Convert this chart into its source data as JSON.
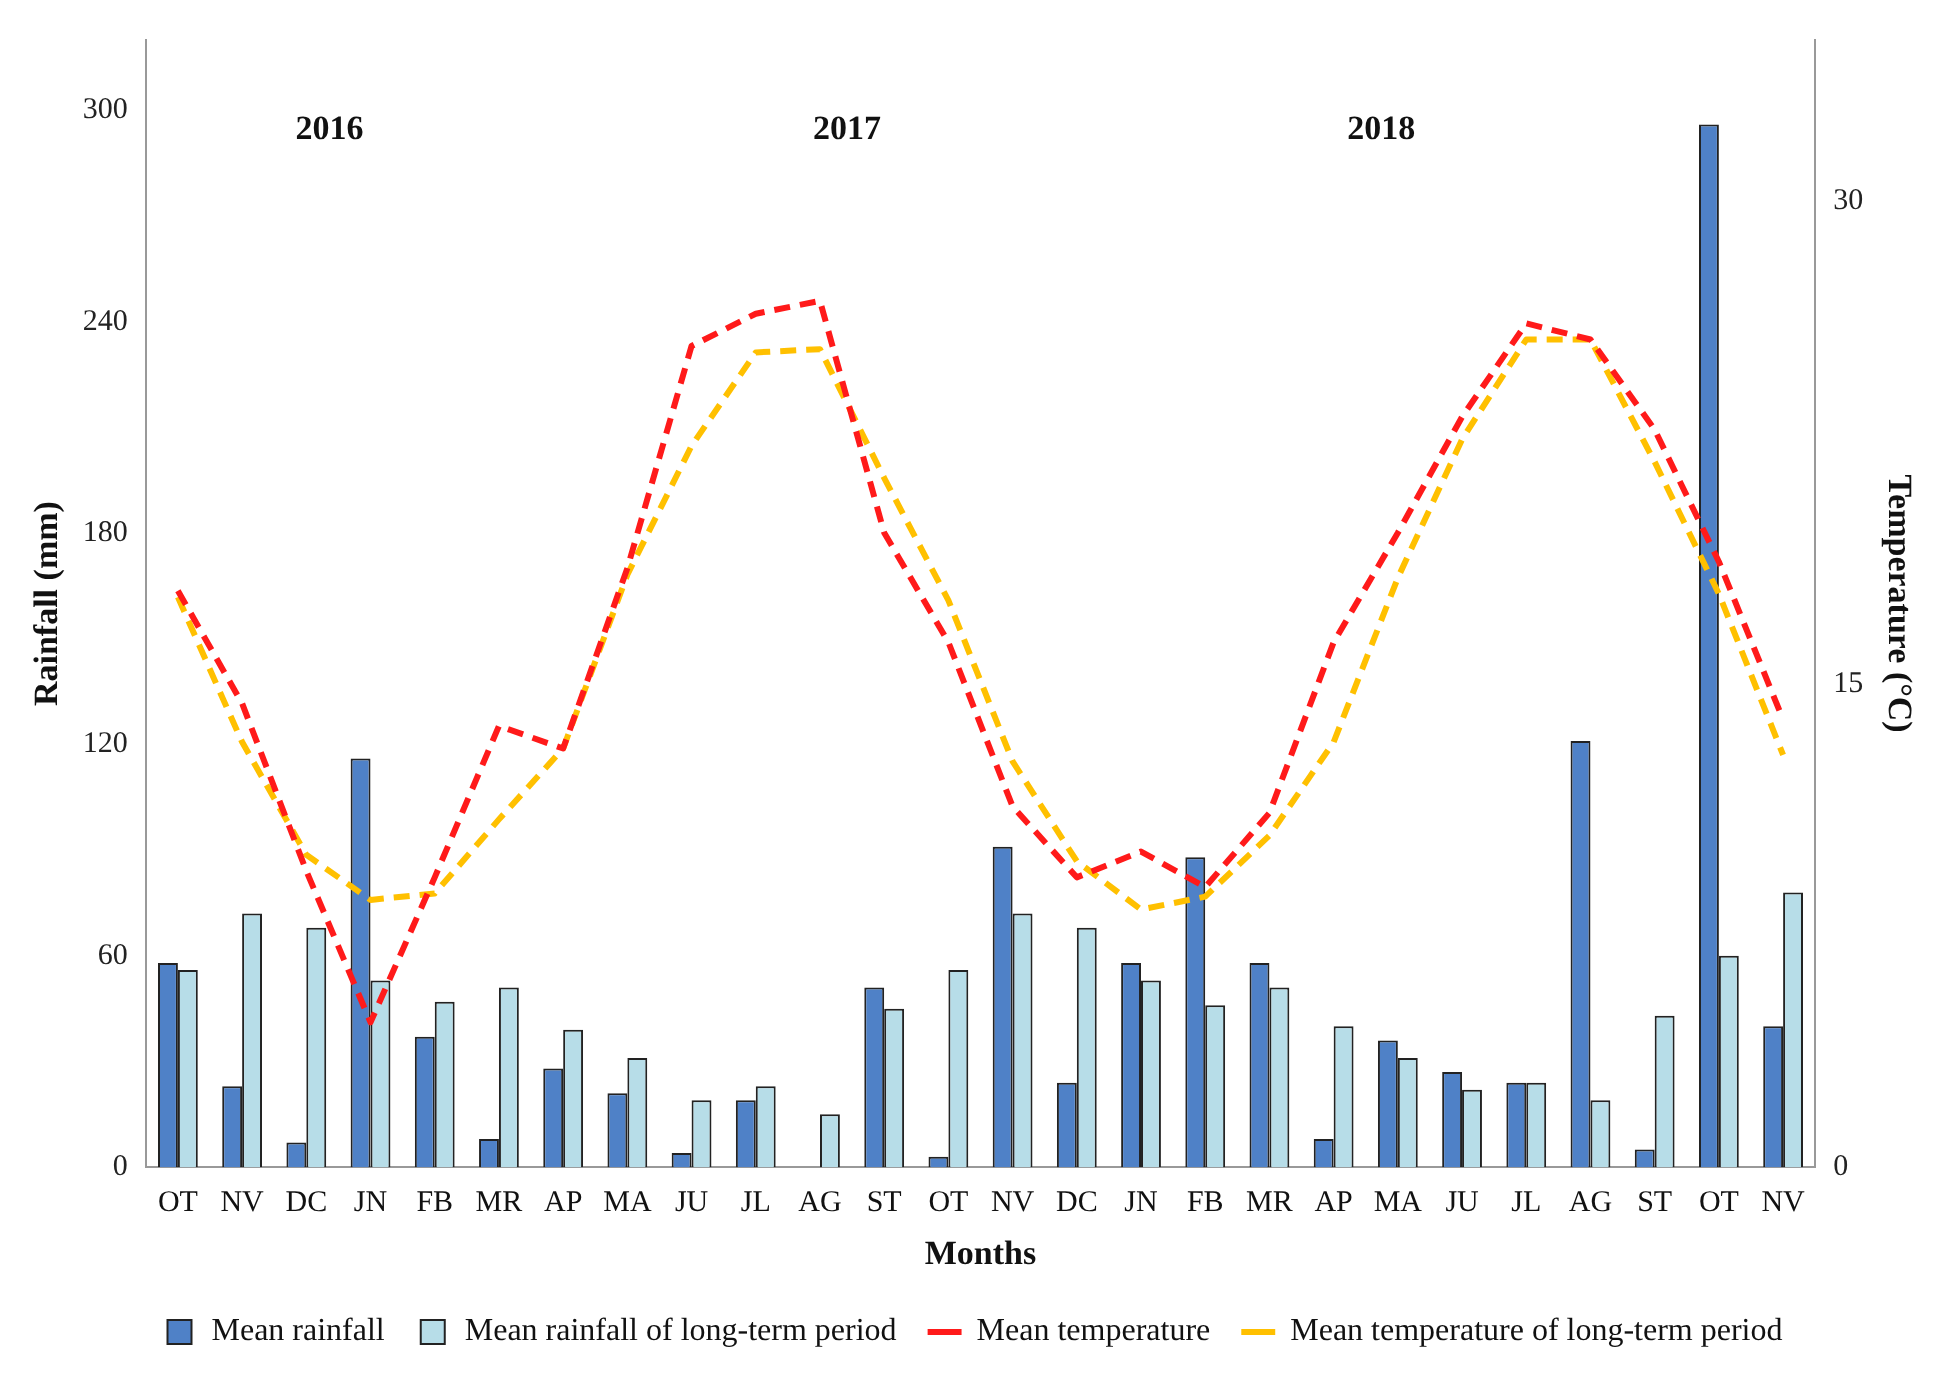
{
  "chart_data": {
    "type": "bar",
    "xlabel": "Months",
    "ylabel": "Rainfall (mm)",
    "y2label": "Temperature (°C)",
    "categories": [
      "OT",
      "NV",
      "DC",
      "JN",
      "FB",
      "MR",
      "AP",
      "MA",
      "JU",
      "JL",
      "AG",
      "ST",
      "OT",
      "NV",
      "DC",
      "JN",
      "FB",
      "MR",
      "AP",
      "MA",
      "JU",
      "JL",
      "AG",
      "ST",
      "OT",
      "NV"
    ],
    "series": [
      {
        "name": "Mean rainfall",
        "color": "#4f81c7",
        "values": [
          58,
          23,
          7,
          116,
          37,
          8,
          28,
          21,
          4,
          19,
          0,
          51,
          3,
          91,
          24,
          58,
          88,
          58,
          8,
          36,
          27,
          24,
          121,
          5,
          296,
          40
        ]
      },
      {
        "name": "Mean rainfall of long-term period",
        "color": "#b7dde8",
        "values": [
          56,
          72,
          68,
          53,
          47,
          51,
          39,
          31,
          19,
          23,
          15,
          45,
          56,
          72,
          68,
          53,
          46,
          51,
          40,
          31,
          22,
          24,
          19,
          43,
          60,
          78
        ]
      },
      {
        "name": "Mean temperature",
        "type": "line",
        "axis": "y2",
        "color": "#ff1a1a",
        "line_style": "dashed",
        "values": [
          17.9,
          14.4,
          9.2,
          4.5,
          9.0,
          13.7,
          13.0,
          18.6,
          25.5,
          26.5,
          26.9,
          19.7,
          16.3,
          11.2,
          9.0,
          9.8,
          8.7,
          11.0,
          16.3,
          19.7,
          23.3,
          26.2,
          25.7,
          22.9,
          18.8,
          13.9
        ]
      },
      {
        "name": "Mean temperature of long-term period",
        "type": "line",
        "axis": "y2",
        "color": "#ffc000",
        "line_style": "dashed",
        "values": [
          17.7,
          13.2,
          9.7,
          8.3,
          8.5,
          10.8,
          13.0,
          18.4,
          22.4,
          25.3,
          25.4,
          21.4,
          17.6,
          12.6,
          9.5,
          8.0,
          8.4,
          10.3,
          13.2,
          18.3,
          22.6,
          25.7,
          25.7,
          21.9,
          17.8,
          12.8
        ]
      }
    ],
    "ylim": [
      0,
      320
    ],
    "yticks": [
      0,
      60,
      120,
      180,
      240,
      300
    ],
    "y2lim": [
      0,
      35
    ],
    "y2ticks": [
      0,
      15,
      30
    ],
    "annotations": [
      "2016",
      "2017",
      "2018"
    ],
    "legend": "bottom",
    "marker": "none",
    "grid": false
  }
}
